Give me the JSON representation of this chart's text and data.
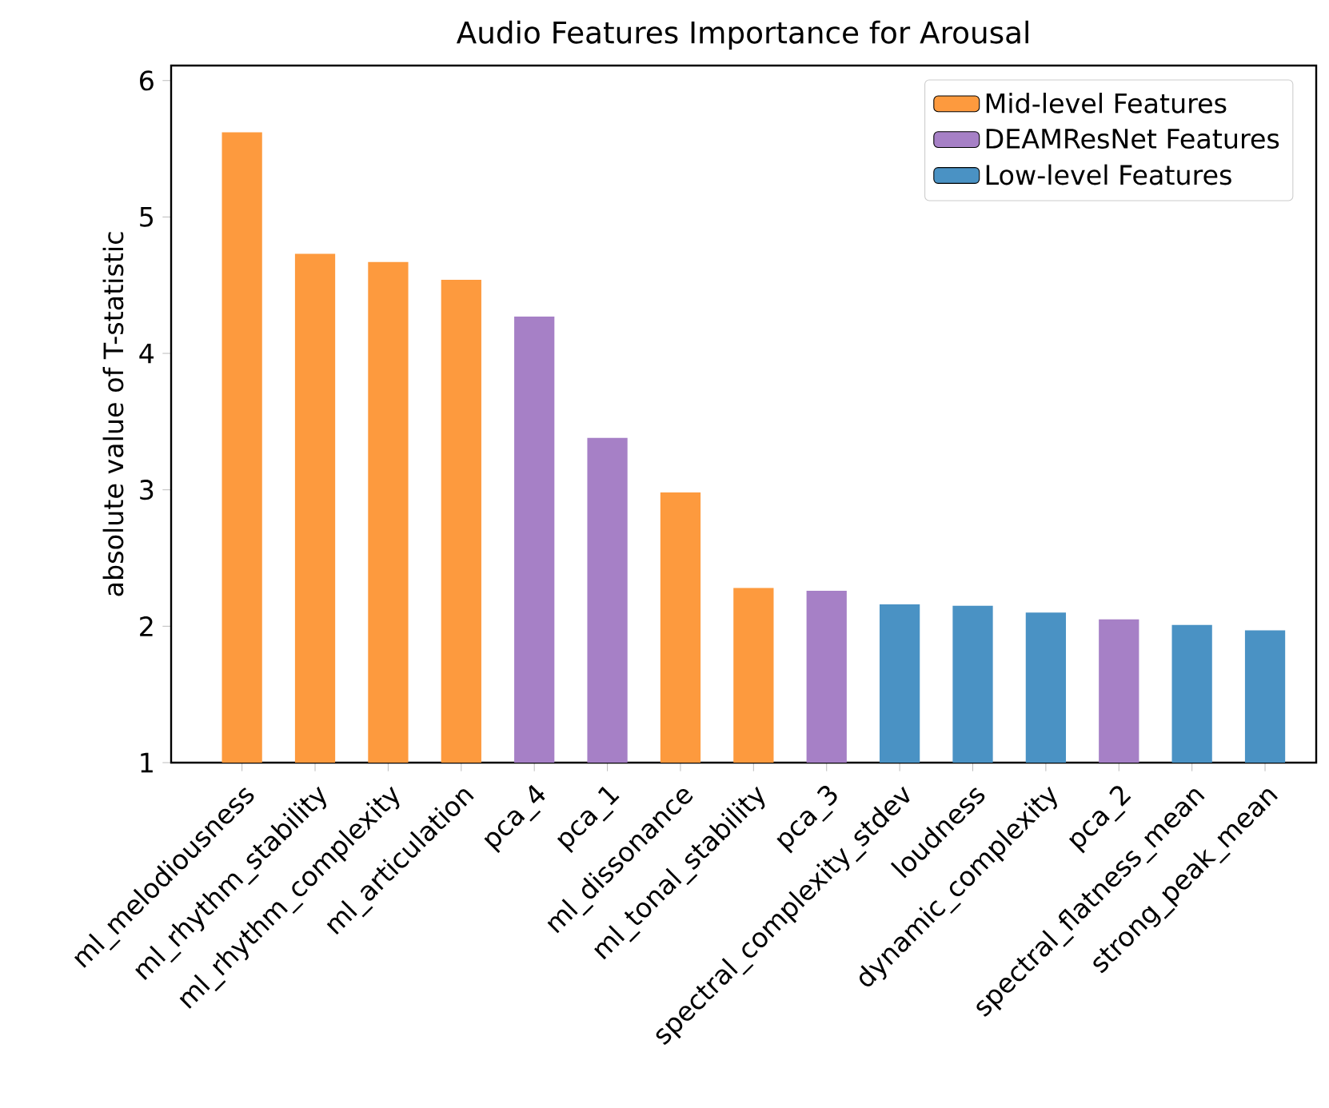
{
  "chart_data": {
    "type": "bar",
    "title": "Audio Features Importance for Arousal",
    "ylabel": "absolute value of T-statistic",
    "categories": [
      "ml_melodiousness",
      "ml_rhythm_stability",
      "ml_rhythm_complexity",
      "ml_articulation",
      "pca_4",
      "pca_1",
      "ml_dissonance",
      "ml_tonal_stability",
      "pca_3",
      "spectral_complexity_stdev",
      "loudness",
      "dynamic_complexity",
      "pca_2",
      "spectral_flatness_mean",
      "strong_peak_mean"
    ],
    "series": [
      {
        "name": "Mid-level Features",
        "color": "#fd9a3e",
        "values": [
          5.62,
          4.73,
          4.67,
          4.54,
          null,
          null,
          2.98,
          2.28,
          null,
          null,
          null,
          null,
          null,
          null,
          null
        ]
      },
      {
        "name": "DEAMResNet Features",
        "color": "#a680c6",
        "values": [
          null,
          null,
          null,
          null,
          4.27,
          3.38,
          null,
          null,
          2.26,
          null,
          null,
          null,
          2.05,
          null,
          null
        ]
      },
      {
        "name": "Low-level Features",
        "color": "#4a92c4",
        "values": [
          null,
          null,
          null,
          null,
          null,
          null,
          null,
          null,
          null,
          2.16,
          2.15,
          2.1,
          null,
          2.01,
          1.97
        ]
      }
    ],
    "ylim": [
      1,
      6.11
    ],
    "yticks": [
      1,
      2,
      3,
      4,
      5,
      6
    ],
    "legend": "top right"
  }
}
